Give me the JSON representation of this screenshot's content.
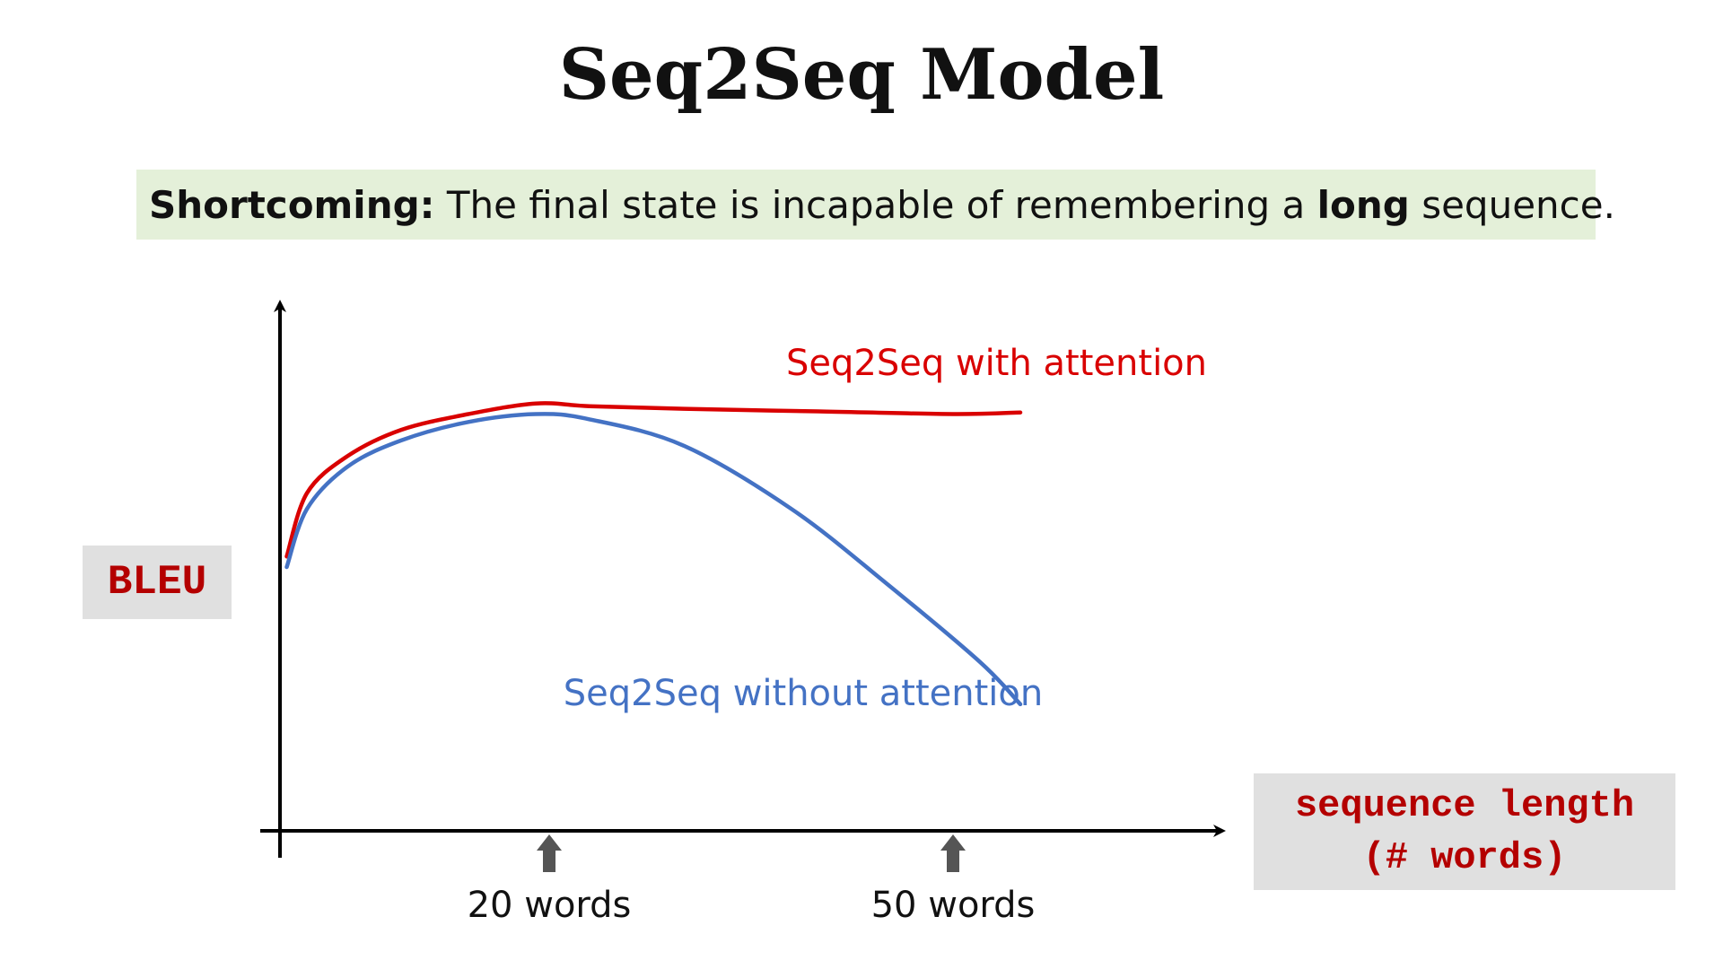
{
  "title": "Seq2Seq Model",
  "note": {
    "lead": "Shortcoming:",
    "text_before": " The final state is incapable of remembering a ",
    "emphasis": "long",
    "text_after": " sequence."
  },
  "chart_data": {
    "type": "line",
    "ylabel": "BLEU",
    "xlabel_line1": "sequence length",
    "xlabel_line2": "(# words)",
    "xlim": [
      0,
      70
    ],
    "ylim": [
      0,
      100
    ],
    "annotations": [
      {
        "label": "20 words",
        "x": 20
      },
      {
        "label": "50 words",
        "x": 50
      }
    ],
    "series": [
      {
        "name": "Seq2Seq with attention",
        "color": "#d90000",
        "x": [
          0.5,
          2,
          5,
          9,
          14,
          19,
          23,
          30,
          40,
          50,
          55
        ],
        "y": [
          52,
          64,
          71,
          76,
          79,
          81,
          80.5,
          80,
          79.5,
          79,
          79.3
        ]
      },
      {
        "name": "Seq2Seq without attention",
        "color": "#4472c4",
        "x": [
          0.5,
          2,
          5,
          9,
          14,
          19,
          23,
          30,
          38,
          45,
          52,
          55
        ],
        "y": [
          50,
          61,
          69,
          74,
          77.5,
          79,
          78,
          73,
          61,
          47,
          32,
          24
        ]
      }
    ],
    "series_label_positions": [
      "top-right",
      "bottom-center"
    ]
  }
}
